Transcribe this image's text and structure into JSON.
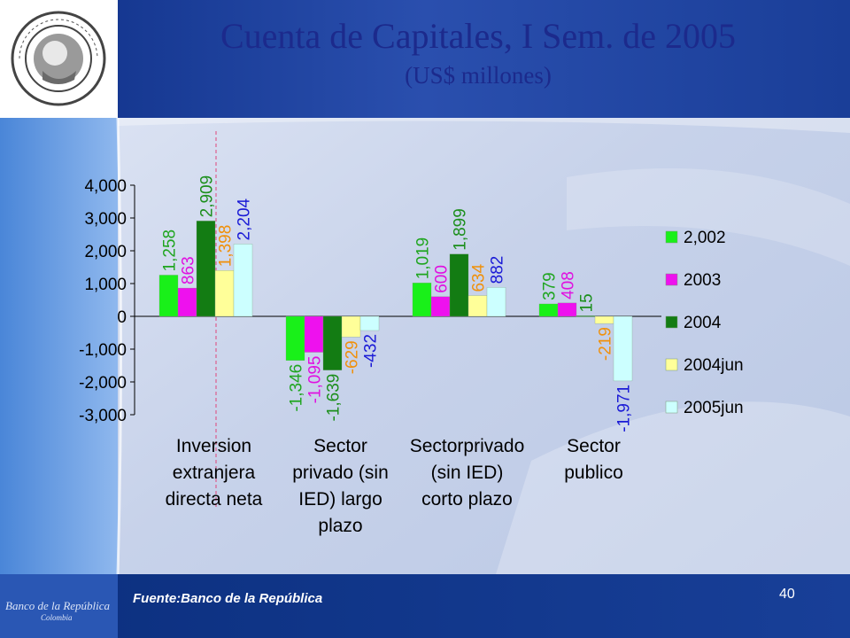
{
  "slide": {
    "title": "Cuenta de Capitales, I Sem.  de 2005",
    "subtitle": "(US$ millones)",
    "source": "Fuente:Banco de la República",
    "page_number": "40",
    "logo": {
      "ring_text": "BANCO DE LA REPUBLICA",
      "bottom_text": "COLOMBIA"
    },
    "footer_logo": {
      "line1": "Banco de la República",
      "line2": "Colombia"
    }
  },
  "colors": {
    "header_bar": "#1b3f9a",
    "footer_bar": "#123a8c",
    "title_text": "#1c2a8c",
    "marker_line": "#e0457a"
  },
  "chart_data": {
    "type": "bar",
    "categories": [
      [
        "Inversion",
        "extranjera",
        "directa neta"
      ],
      [
        "Sector",
        "privado (sin",
        "IED) largo",
        "plazo"
      ],
      [
        "Sectorprivado",
        "(sin IED)",
        "corto plazo"
      ],
      [
        "Sector",
        "publico"
      ]
    ],
    "series": [
      {
        "name": "2,002",
        "color": "#19f019",
        "label_color": "#1fa51f",
        "values": [
          1258,
          -1346,
          1019,
          379
        ],
        "labels": [
          "1,258",
          "-1,346",
          "1,019",
          "379"
        ]
      },
      {
        "name": "2003",
        "color": "#ee11ee",
        "label_color": "#e010e0",
        "values": [
          863,
          -1095,
          600,
          408
        ],
        "labels": [
          "863",
          "-1,095",
          "600",
          "408"
        ]
      },
      {
        "name": "2004",
        "color": "#137c13",
        "label_color": "#1c8f1c",
        "values": [
          2909,
          -1639,
          1899,
          15
        ],
        "labels": [
          "2,909",
          "-1,639",
          "1,899",
          "15"
        ]
      },
      {
        "name": "2004jun",
        "color": "#ffff99",
        "label_color": "#f0900a",
        "values": [
          1398,
          -629,
          634,
          -219
        ],
        "labels": [
          "1,398",
          "-629",
          "634",
          "-219"
        ]
      },
      {
        "name": "2005jun",
        "color": "#ccffff",
        "label_color": "#1a1ad6",
        "values": [
          2204,
          -432,
          882,
          -1971
        ],
        "labels": [
          "2,204",
          "-432",
          "882",
          "-1,971"
        ]
      }
    ],
    "y_ticks": [
      "4,000",
      "3,000",
      "2,000",
      "1,000",
      "0",
      "-1,000",
      "-2,000",
      "-3,000"
    ],
    "y_tick_values": [
      4000,
      3000,
      2000,
      1000,
      0,
      -1000,
      -2000,
      -3000
    ],
    "ylim": [
      -3000,
      4000
    ],
    "legend_position": "right",
    "grid": false
  }
}
